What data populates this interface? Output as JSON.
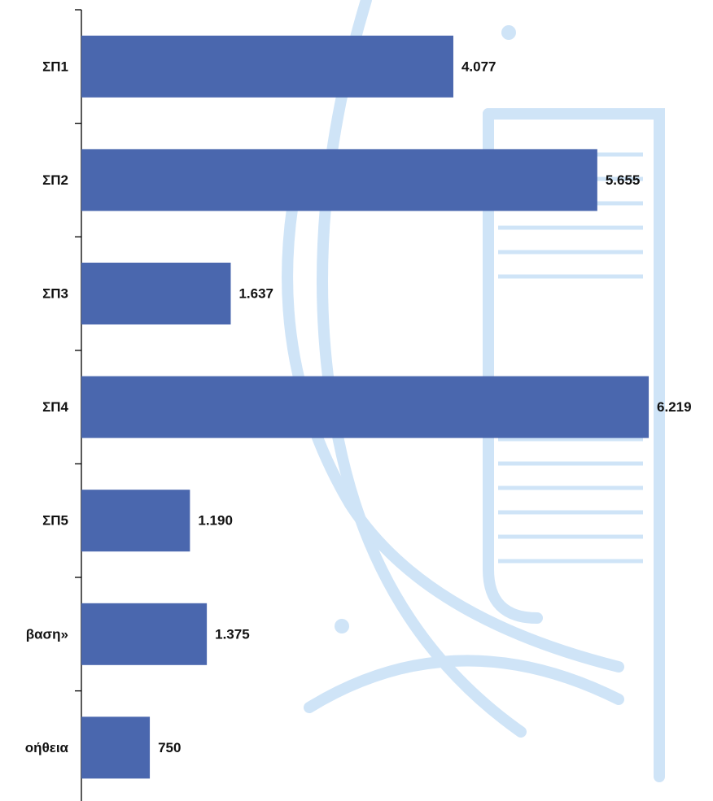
{
  "chart_data": {
    "type": "bar",
    "orientation": "horizontal",
    "categories": [
      "ΣΠ1",
      "ΣΠ2",
      "ΣΠ3",
      "ΣΠ4",
      "ΣΠ5",
      "βαση»",
      "οήθεια"
    ],
    "values": [
      4077,
      5655,
      1637,
      6219,
      1190,
      1375,
      750
    ],
    "value_labels": [
      "4.077",
      "5.655",
      "1.637",
      "6.219",
      "1.190",
      "1.375",
      "750"
    ],
    "color": "#4a67ae",
    "xlim": [
      0,
      7000
    ]
  }
}
